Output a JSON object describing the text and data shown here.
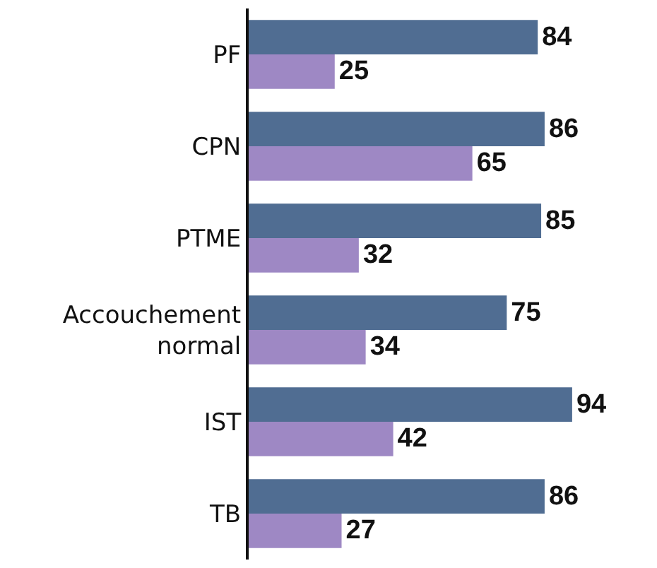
{
  "chart_data": {
    "type": "bar",
    "orientation": "horizontal",
    "categories": [
      "PF",
      "CPN",
      "PTME",
      "Accouchement normal",
      "IST",
      "TB"
    ],
    "series": [
      {
        "color": "#506d92",
        "values": [
          84,
          86,
          85,
          75,
          94,
          86
        ]
      },
      {
        "color": "#9e88c4",
        "values": [
          25,
          65,
          32,
          34,
          42,
          27
        ]
      }
    ],
    "data_labels": true,
    "tick_labels": "y"
  }
}
